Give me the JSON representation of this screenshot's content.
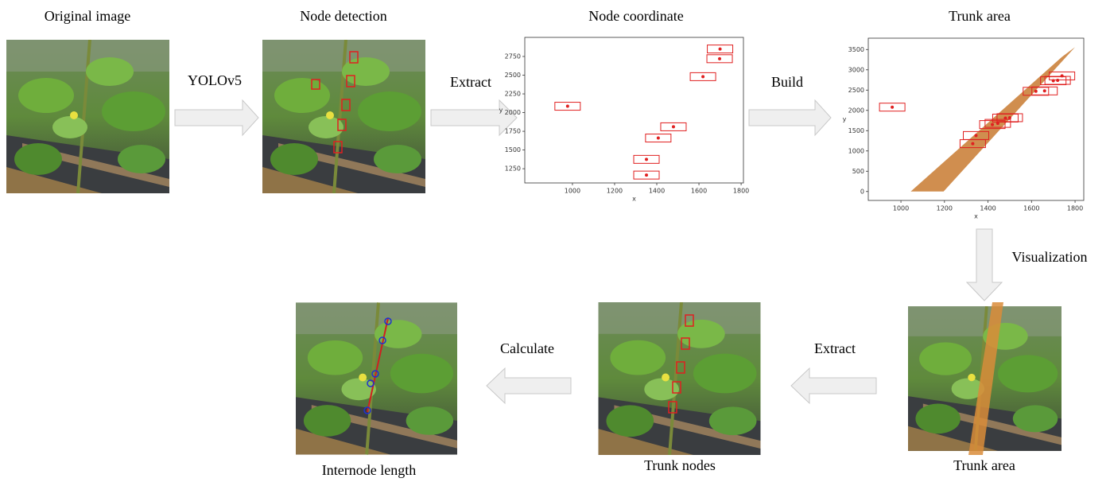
{
  "labels": {
    "original": "Original  image",
    "detection": "Node detection",
    "coordinate": "Node coordinate",
    "trunk_top": "Trunk  area",
    "trunk_bottom": "Trunk  area",
    "trunk_nodes": "Trunk  nodes",
    "internode": "Internode  length"
  },
  "arrows": {
    "yolo": "YOLOv5",
    "extract1": "Extract",
    "build": "Build",
    "visualization": "Visualization",
    "extract2": "Extract",
    "calculate": "Calculate"
  },
  "node_coordinate": {
    "xlabel": "x",
    "ylabel": "y",
    "xlim": [
      774,
      1811
    ],
    "ylim": [
      1060,
      3005
    ],
    "xticks": [
      1000,
      1200,
      1400,
      1600,
      1800
    ],
    "yticks": [
      1250,
      1500,
      1750,
      2000,
      2250,
      2500,
      2750
    ],
    "points": {
      "x": [
        977,
        1351,
        1351,
        1407,
        1479,
        1619,
        1698,
        1700
      ],
      "y": [
        2085,
        1165,
        1375,
        1660,
        1810,
        2480,
        2720,
        2850
      ]
    }
  },
  "trunk_plot": {
    "xlabel": "x",
    "ylabel": "y",
    "xlim": [
      850,
      1840
    ],
    "ylim": [
      -220,
      3780
    ],
    "xticks": [
      1000,
      1200,
      1400,
      1600,
      1800
    ],
    "yticks": [
      0,
      500,
      1000,
      1500,
      2000,
      2500,
      3000,
      3500
    ],
    "points": {
      "x": [
        960,
        1330,
        1345,
        1420,
        1445,
        1480,
        1500,
        1620,
        1660,
        1700,
        1720,
        1740
      ],
      "y": [
        2080,
        1180,
        1380,
        1650,
        1680,
        1810,
        1820,
        2470,
        2480,
        2730,
        2740,
        2850
      ]
    },
    "trunk_area": {
      "x": [
        1045,
        1196,
        1800,
        1740
      ],
      "y": [
        0,
        0,
        3560,
        3320
      ]
    }
  }
}
